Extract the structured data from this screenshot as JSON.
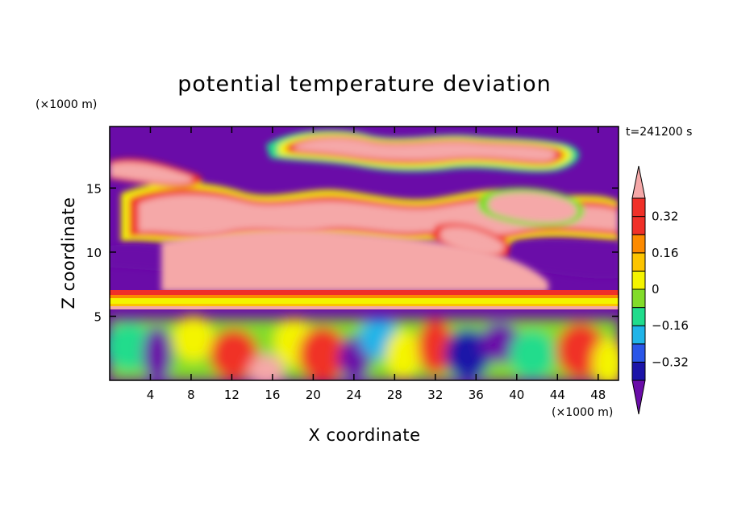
{
  "chart_data": {
    "type": "heatmap",
    "title": "potential temperature deviation",
    "xlabel": "X coordinate",
    "ylabel": "Z coordinate",
    "x_unit": "(×1000 m)",
    "y_unit": "(×1000 m)",
    "time_label": "t=241200 s",
    "xlim": [
      0,
      50
    ],
    "ylim": [
      0,
      19.8
    ],
    "xticks": [
      4,
      8,
      12,
      16,
      20,
      24,
      28,
      32,
      36,
      40,
      44,
      48
    ],
    "yticks": [
      5,
      10,
      15
    ],
    "colorbar": {
      "levels": [
        -0.4,
        -0.32,
        -0.24,
        -0.16,
        -0.08,
        0,
        0.08,
        0.16,
        0.24,
        0.32,
        0.4
      ],
      "colors": [
        "#6a0ca8",
        "#1c14a8",
        "#2a56e8",
        "#20b4e8",
        "#20dc8c",
        "#82dc2a",
        "#f4f400",
        "#fcc400",
        "#fc8a00",
        "#f03028",
        "#f5a8a8"
      ],
      "labels": [
        "0.32",
        "0.16",
        "0",
        "-0.16",
        "-0.32"
      ],
      "label_values": [
        0.32,
        0.16,
        0,
        -0.16,
        -0.32
      ],
      "extend": "both"
    }
  }
}
